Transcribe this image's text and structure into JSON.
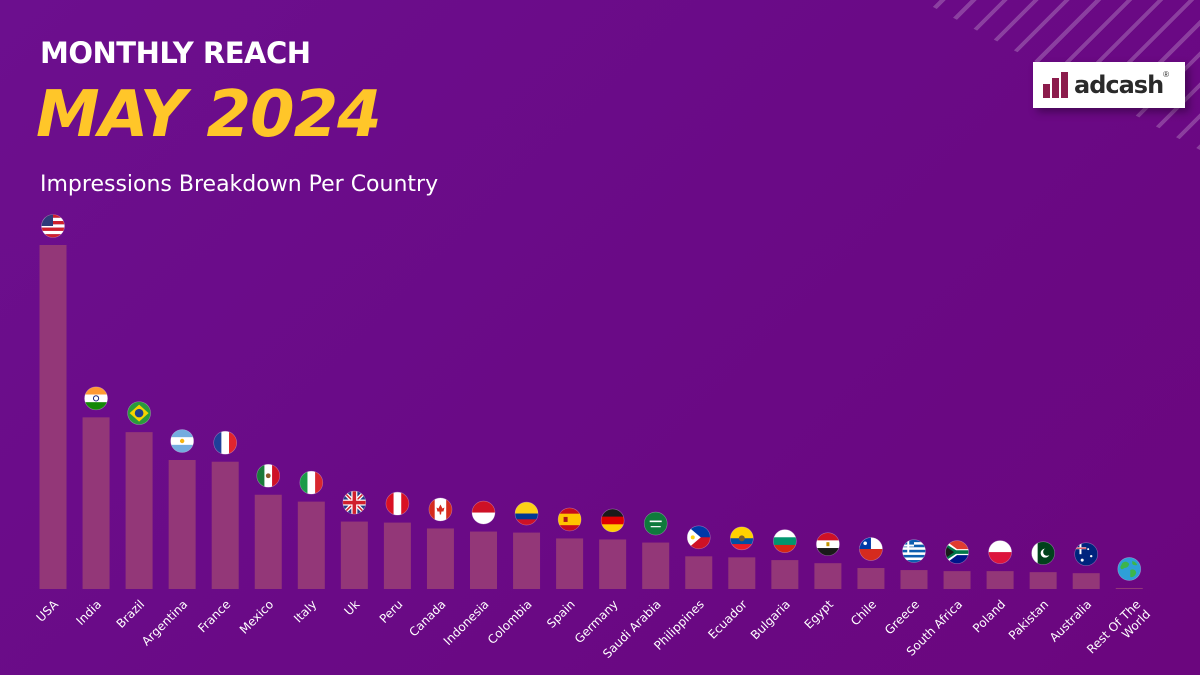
{
  "header": {
    "heading": "MONTHLY REACH",
    "month": "MAY 2024",
    "subtitle": "Impressions Breakdown Per Country"
  },
  "logo": {
    "text": "adcash",
    "reg": "®",
    "icon": "adcash-bars-logo"
  },
  "colors": {
    "background": "#6a0a86",
    "bar": "#933778",
    "title_accent": "#ffc629",
    "text": "#ffffff"
  },
  "chart_data": {
    "type": "bar",
    "title": "Impressions Breakdown Per Country",
    "xlabel": "",
    "ylabel": "",
    "y_axis_shown": false,
    "grid": false,
    "ylim": [
      0,
      100
    ],
    "value_unit": "relative (no axis printed)",
    "categories": [
      "USA",
      "India",
      "Brazil",
      "Argentina",
      "France",
      "Mexico",
      "Italy",
      "Uk",
      "Peru",
      "Canada",
      "Indonesia",
      "Colombia",
      "Spain",
      "Germany",
      "Saudi Arabia",
      "Philippines",
      "Ecuador",
      "Bulgaria",
      "Egypt",
      "Chile",
      "Greece",
      "South Africa",
      "Poland",
      "Pakistan",
      "Australia",
      "Rest Of The World"
    ],
    "values": [
      100,
      49.9,
      45.6,
      37.5,
      37.0,
      27.4,
      25.4,
      19.6,
      19.3,
      17.6,
      16.7,
      16.4,
      14.7,
      14.4,
      13.5,
      9.5,
      9.2,
      8.4,
      7.5,
      6.1,
      5.5,
      5.2,
      5.2,
      4.9,
      4.6,
      0.3
    ],
    "marker_icons": [
      "flag-usa-icon",
      "flag-india-icon",
      "flag-brazil-icon",
      "flag-argentina-icon",
      "flag-france-icon",
      "flag-mexico-icon",
      "flag-italy-icon",
      "flag-uk-icon",
      "flag-peru-icon",
      "flag-canada-icon",
      "flag-indonesia-icon",
      "flag-colombia-icon",
      "flag-spain-icon",
      "flag-germany-icon",
      "flag-saudi-arabia-icon",
      "flag-philippines-icon",
      "flag-ecuador-icon",
      "flag-bulgaria-icon",
      "flag-egypt-icon",
      "flag-chile-icon",
      "flag-greece-icon",
      "flag-south-africa-icon",
      "flag-poland-icon",
      "flag-pakistan-icon",
      "flag-australia-icon",
      "globe-icon"
    ]
  }
}
